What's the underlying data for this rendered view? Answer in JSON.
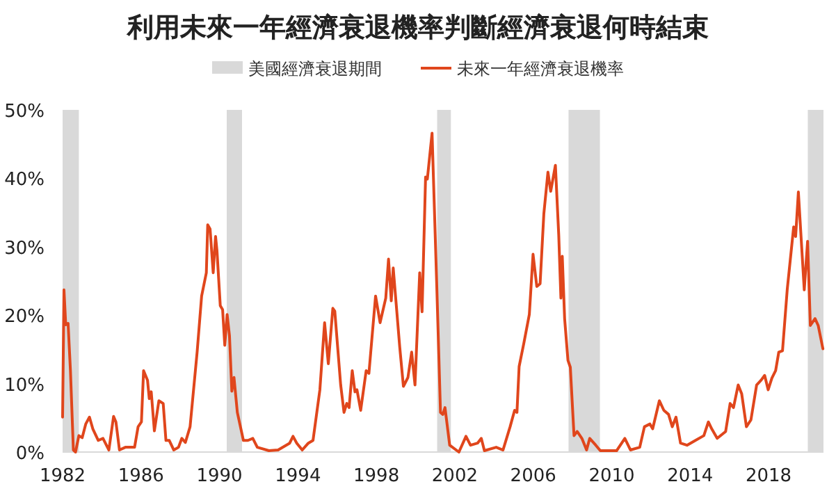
{
  "chart_data": {
    "type": "line",
    "title": "利用未來一年經濟衰退機率判斷經濟衰退何時結束",
    "legend": "top",
    "grid": false,
    "xlim": [
      1982,
      2020.8
    ],
    "xticks": [
      1982,
      1986,
      1990,
      1994,
      1998,
      2002,
      2006,
      2010,
      2014,
      2018
    ],
    "ylim": [
      0,
      50
    ],
    "yticks": [
      {
        "value": 0,
        "label": "0%"
      },
      {
        "value": 10,
        "label": "10%"
      },
      {
        "value": 20,
        "label": "20%"
      },
      {
        "value": 30,
        "label": "30%"
      },
      {
        "value": 40,
        "label": "40%"
      },
      {
        "value": 50,
        "label": "50%"
      }
    ],
    "bands": [
      {
        "axis": "x",
        "from": 1982.0,
        "to": 1982.83,
        "label": "美國經濟衰退期間",
        "color": "#d9d9d9"
      },
      {
        "axis": "x",
        "from": 1990.37,
        "to": 1991.15,
        "color": "#d9d9d9"
      },
      {
        "axis": "x",
        "from": 2001.1,
        "to": 2001.8,
        "color": "#d9d9d9"
      },
      {
        "axis": "x",
        "from": 2007.8,
        "to": 2009.4,
        "color": "#d9d9d9"
      },
      {
        "axis": "x",
        "from": 2020.0,
        "to": 2020.8,
        "color": "#d9d9d9"
      }
    ],
    "series": [
      {
        "name": "未來一年經濟衰退機率",
        "color": "#e0461c",
        "x": [
          1982.0,
          1982.07,
          1982.16,
          1982.28,
          1982.4,
          1982.55,
          1982.66,
          1982.83,
          1983.0,
          1983.18,
          1983.37,
          1983.54,
          1983.82,
          1984.06,
          1984.36,
          1984.6,
          1984.72,
          1984.9,
          1985.2,
          1985.67,
          1985.85,
          1986.02,
          1986.13,
          1986.33,
          1986.42,
          1986.52,
          1986.68,
          1986.91,
          1987.13,
          1987.27,
          1987.44,
          1987.67,
          1987.91,
          1988.08,
          1988.26,
          1988.5,
          1988.86,
          1989.09,
          1989.33,
          1989.4,
          1989.52,
          1989.68,
          1989.8,
          1989.87,
          1990.04,
          1990.16,
          1990.27,
          1990.39,
          1990.51,
          1990.63,
          1990.74,
          1990.91,
          1991.22,
          1991.45,
          1991.7,
          1991.93,
          1992.52,
          1992.99,
          1993.58,
          1993.75,
          1993.94,
          1994.22,
          1994.53,
          1994.77,
          1995.12,
          1995.36,
          1995.55,
          1995.78,
          1995.88,
          1996.18,
          1996.35,
          1996.49,
          1996.61,
          1996.77,
          1996.91,
          1997.01,
          1997.2,
          1997.48,
          1997.62,
          1997.96,
          1998.19,
          1998.48,
          1998.62,
          1998.76,
          1998.86,
          1999.19,
          1999.38,
          1999.61,
          1999.8,
          1999.97,
          2000.21,
          2000.33,
          2000.51,
          2000.6,
          2000.84,
          2001.08,
          2001.27,
          2001.39,
          2001.5,
          2001.74,
          2002.21,
          2002.57,
          2002.8,
          2003.16,
          2003.35,
          2003.51,
          2004.11,
          2004.46,
          2004.82,
          2005.05,
          2005.17,
          2005.28,
          2005.52,
          2005.8,
          2005.99,
          2006.18,
          2006.35,
          2006.54,
          2006.75,
          2006.89,
          2007.13,
          2007.3,
          2007.41,
          2007.48,
          2007.6,
          2007.77,
          2007.89,
          2008.08,
          2008.24,
          2008.48,
          2008.72,
          2008.88,
          2009.19,
          2009.42,
          2010.25,
          2010.67,
          2010.96,
          2011.43,
          2011.67,
          2011.95,
          2012.09,
          2012.43,
          2012.66,
          2012.9,
          2013.09,
          2013.28,
          2013.51,
          2013.84,
          2014.27,
          2014.7,
          2014.93,
          2015.1,
          2015.38,
          2015.81,
          2016.04,
          2016.21,
          2016.45,
          2016.63,
          2016.87,
          2017.1,
          2017.39,
          2017.62,
          2017.8,
          2017.98,
          2018.17,
          2018.36,
          2018.52,
          2018.71,
          2018.95,
          2019.28,
          2019.38,
          2019.52,
          2019.82,
          2019.99,
          2020.13,
          2020.37,
          2020.53,
          2020.77
        ],
        "values": [
          5.1,
          23.7,
          18.6,
          18.8,
          11.9,
          0.3,
          0,
          2.4,
          2.1,
          4.1,
          5.1,
          3.4,
          1.7,
          2.0,
          0.3,
          5.2,
          4.4,
          0.3,
          0.7,
          0.7,
          3.7,
          4.4,
          11.9,
          10.5,
          7.8,
          8.8,
          3.1,
          7.5,
          7.1,
          1.7,
          1.7,
          0.3,
          0.7,
          2.0,
          1.4,
          3.7,
          14.6,
          22.8,
          26.2,
          33.2,
          32.6,
          26.2,
          31.5,
          29.5,
          21.4,
          20.8,
          15.6,
          20.1,
          17.0,
          8.9,
          10.9,
          5.8,
          1.7,
          1.7,
          2.0,
          0.7,
          0.2,
          0.3,
          1.3,
          2.3,
          1.3,
          0.3,
          1.3,
          1.7,
          9.1,
          18.9,
          12.9,
          21.0,
          20.6,
          9.8,
          5.8,
          7.1,
          6.5,
          11.9,
          8.8,
          9.1,
          6.1,
          11.9,
          11.5,
          22.8,
          18.9,
          22.5,
          28.2,
          22.1,
          26.9,
          15.4,
          9.6,
          10.9,
          14.6,
          9.8,
          26.2,
          20.5,
          40.2,
          39.9,
          46.6,
          24.3,
          5.8,
          5.5,
          6.5,
          1.0,
          0,
          2.3,
          1.0,
          1.3,
          2.0,
          0.2,
          0.7,
          0.3,
          3.7,
          6.1,
          5.8,
          12.5,
          15.9,
          20.1,
          28.9,
          24.2,
          24.6,
          34.8,
          40.9,
          38.1,
          41.9,
          31.7,
          22.5,
          28.6,
          19.5,
          13.4,
          12.4,
          2.4,
          3.0,
          2.0,
          0.3,
          2.0,
          1.0,
          0.2,
          0.2,
          2.0,
          0.3,
          0.7,
          3.7,
          4.1,
          3.4,
          7.5,
          6.1,
          5.5,
          3.7,
          5.1,
          1.3,
          1.0,
          1.7,
          2.4,
          4.4,
          3.4,
          2.0,
          3.0,
          7.1,
          6.5,
          9.8,
          8.5,
          3.7,
          4.7,
          9.8,
          10.5,
          11.2,
          9.1,
          10.8,
          11.9,
          14.6,
          14.8,
          23.7,
          32.9,
          31.5,
          38.0,
          23.7,
          30.8,
          18.5,
          19.5,
          18.5,
          15.1
        ]
      }
    ]
  }
}
